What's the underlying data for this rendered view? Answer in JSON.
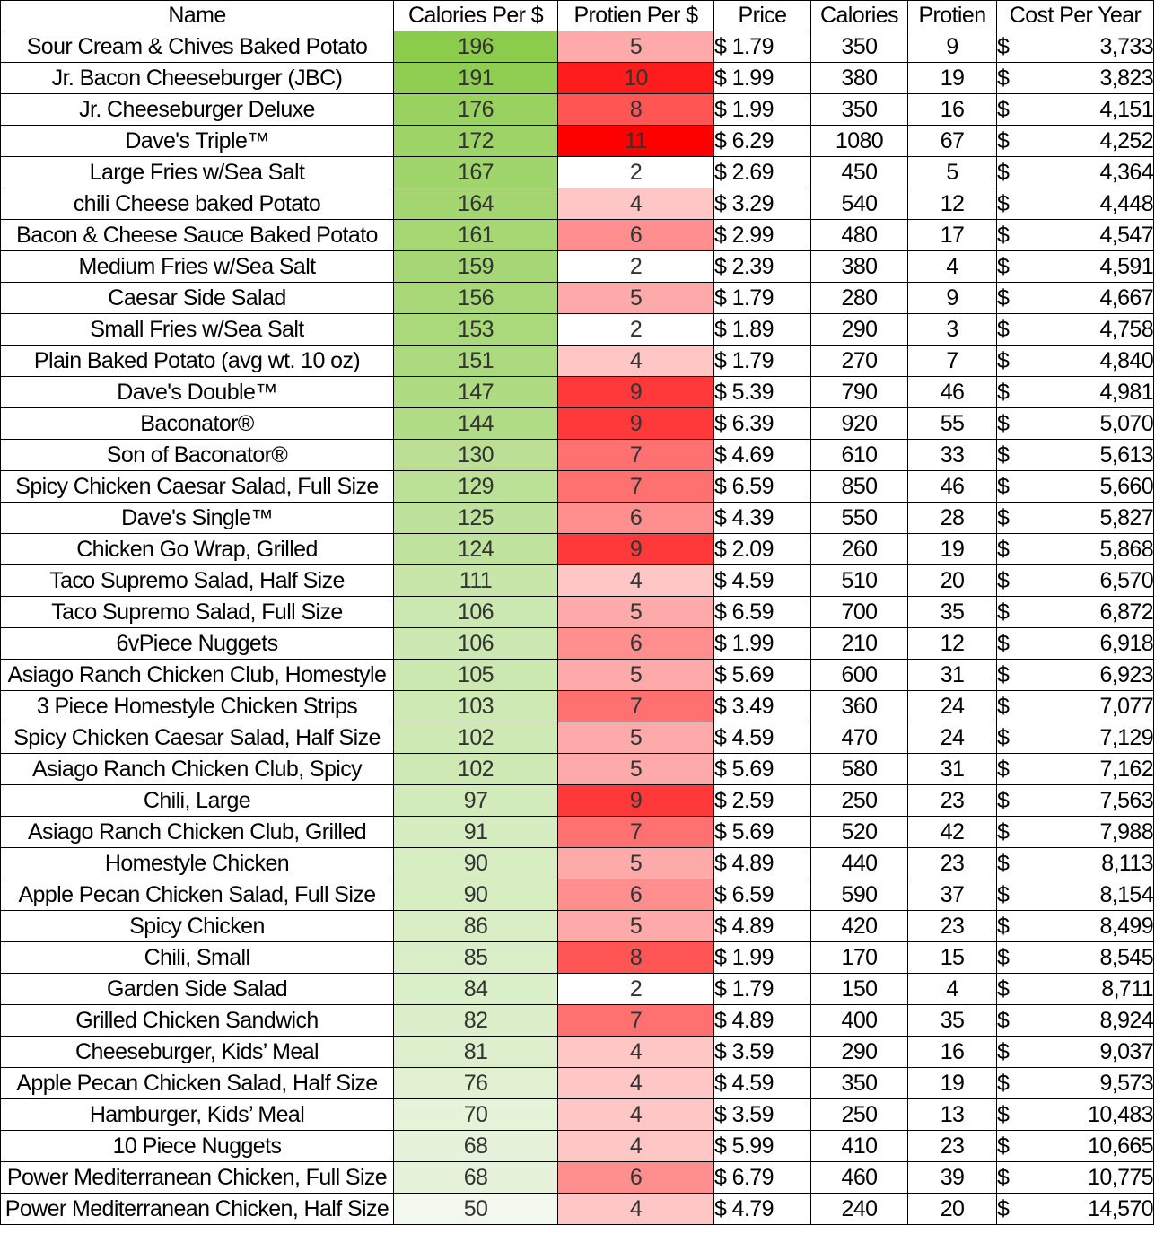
{
  "headers": {
    "name": "Name",
    "calories_per_dollar": "Calories Per $",
    "protein_per_dollar": "Protien Per $",
    "price": "Price",
    "calories": "Calories",
    "protein": "Protien",
    "cost_per_year": "Cost Per Year"
  },
  "currency_symbol": "$",
  "colors": {
    "green_scale_max": "#8ccc4c",
    "green_scale_min": "#f3f9ee",
    "red_scale_max": "#ff0000",
    "red_scale_min": "#ffffff"
  },
  "rows": [
    {
      "name": "Sour Cream & Chives Baked Potato",
      "cpd": "196",
      "ppd": "5",
      "price": "$ 1.79",
      "cal": "350",
      "pro": "9",
      "cost": "3,733"
    },
    {
      "name": "Jr. Bacon Cheeseburger (JBC)",
      "cpd": "191",
      "ppd": "10",
      "price": "$ 1.99",
      "cal": "380",
      "pro": "19",
      "cost": "3,823"
    },
    {
      "name": "Jr. Cheeseburger Deluxe",
      "cpd": "176",
      "ppd": "8",
      "price": "$ 1.99",
      "cal": "350",
      "pro": "16",
      "cost": "4,151"
    },
    {
      "name": "Dave's Triple™",
      "cpd": "172",
      "ppd": "11",
      "price": "$ 6.29",
      "cal": "1080",
      "pro": "67",
      "cost": "4,252"
    },
    {
      "name": "Large Fries w/Sea Salt",
      "cpd": "167",
      "ppd": "2",
      "price": "$ 2.69",
      "cal": "450",
      "pro": "5",
      "cost": "4,364"
    },
    {
      "name": "chili Cheese baked Potato",
      "cpd": "164",
      "ppd": "4",
      "price": "$ 3.29",
      "cal": "540",
      "pro": "12",
      "cost": "4,448"
    },
    {
      "name": "Bacon & Cheese Sauce Baked Potato",
      "cpd": "161",
      "ppd": "6",
      "price": "$ 2.99",
      "cal": "480",
      "pro": "17",
      "cost": "4,547"
    },
    {
      "name": "Medium Fries w/Sea Salt",
      "cpd": "159",
      "ppd": "2",
      "price": "$ 2.39",
      "cal": "380",
      "pro": "4",
      "cost": "4,591"
    },
    {
      "name": "Caesar Side Salad",
      "cpd": "156",
      "ppd": "5",
      "price": "$ 1.79",
      "cal": "280",
      "pro": "9",
      "cost": "4,667"
    },
    {
      "name": "Small Fries w/Sea Salt",
      "cpd": "153",
      "ppd": "2",
      "price": "$ 1.89",
      "cal": "290",
      "pro": "3",
      "cost": "4,758"
    },
    {
      "name": "Plain Baked Potato (avg wt. 10 oz)",
      "cpd": "151",
      "ppd": "4",
      "price": "$ 1.79",
      "cal": "270",
      "pro": "7",
      "cost": "4,840"
    },
    {
      "name": "Dave's Double™",
      "cpd": "147",
      "ppd": "9",
      "price": "$ 5.39",
      "cal": "790",
      "pro": "46",
      "cost": "4,981"
    },
    {
      "name": "Baconator®",
      "cpd": "144",
      "ppd": "9",
      "price": "$ 6.39",
      "cal": "920",
      "pro": "55",
      "cost": "5,070"
    },
    {
      "name": "Son of Baconator®",
      "cpd": "130",
      "ppd": "7",
      "price": "$ 4.69",
      "cal": "610",
      "pro": "33",
      "cost": "5,613"
    },
    {
      "name": "Spicy Chicken Caesar Salad, Full Size",
      "cpd": "129",
      "ppd": "7",
      "price": "$ 6.59",
      "cal": "850",
      "pro": "46",
      "cost": "5,660"
    },
    {
      "name": "Dave's Single™",
      "cpd": "125",
      "ppd": "6",
      "price": "$ 4.39",
      "cal": "550",
      "pro": "28",
      "cost": "5,827"
    },
    {
      "name": "Chicken Go Wrap, Grilled",
      "cpd": "124",
      "ppd": "9",
      "price": "$ 2.09",
      "cal": "260",
      "pro": "19",
      "cost": "5,868"
    },
    {
      "name": "Taco Supremo Salad, Half Size",
      "cpd": "111",
      "ppd": "4",
      "price": "$ 4.59",
      "cal": "510",
      "pro": "20",
      "cost": "6,570"
    },
    {
      "name": "Taco Supremo Salad, Full Size",
      "cpd": "106",
      "ppd": "5",
      "price": "$ 6.59",
      "cal": "700",
      "pro": "35",
      "cost": "6,872"
    },
    {
      "name": "6vPiece Nuggets",
      "cpd": "106",
      "ppd": "6",
      "price": "$ 1.99",
      "cal": "210",
      "pro": "12",
      "cost": "6,918"
    },
    {
      "name": "Asiago Ranch Chicken Club, Homestyle",
      "cpd": "105",
      "ppd": "5",
      "price": "$ 5.69",
      "cal": "600",
      "pro": "31",
      "cost": "6,923"
    },
    {
      "name": "3 Piece Homestyle Chicken Strips",
      "cpd": "103",
      "ppd": "7",
      "price": "$ 3.49",
      "cal": "360",
      "pro": "24",
      "cost": "7,077"
    },
    {
      "name": "Spicy Chicken Caesar Salad, Half Size",
      "cpd": "102",
      "ppd": "5",
      "price": "$ 4.59",
      "cal": "470",
      "pro": "24",
      "cost": "7,129"
    },
    {
      "name": "Asiago Ranch Chicken Club, Spicy",
      "cpd": "102",
      "ppd": "5",
      "price": "$ 5.69",
      "cal": "580",
      "pro": "31",
      "cost": "7,162"
    },
    {
      "name": "Chili, Large",
      "cpd": "97",
      "ppd": "9",
      "price": "$ 2.59",
      "cal": "250",
      "pro": "23",
      "cost": "7,563"
    },
    {
      "name": "Asiago Ranch Chicken Club, Grilled",
      "cpd": "91",
      "ppd": "7",
      "price": "$ 5.69",
      "cal": "520",
      "pro": "42",
      "cost": "7,988"
    },
    {
      "name": "Homestyle Chicken",
      "cpd": "90",
      "ppd": "5",
      "price": "$ 4.89",
      "cal": "440",
      "pro": "23",
      "cost": "8,113"
    },
    {
      "name": "Apple Pecan Chicken Salad, Full Size",
      "cpd": "90",
      "ppd": "6",
      "price": "$ 6.59",
      "cal": "590",
      "pro": "37",
      "cost": "8,154"
    },
    {
      "name": "Spicy Chicken",
      "cpd": "86",
      "ppd": "5",
      "price": "$ 4.89",
      "cal": "420",
      "pro": "23",
      "cost": "8,499"
    },
    {
      "name": "Chili, Small",
      "cpd": "85",
      "ppd": "8",
      "price": "$ 1.99",
      "cal": "170",
      "pro": "15",
      "cost": "8,545"
    },
    {
      "name": "Garden Side Salad",
      "cpd": "84",
      "ppd": "2",
      "price": "$ 1.79",
      "cal": "150",
      "pro": "4",
      "cost": "8,711"
    },
    {
      "name": "Grilled Chicken Sandwich",
      "cpd": "82",
      "ppd": "7",
      "price": "$ 4.89",
      "cal": "400",
      "pro": "35",
      "cost": "8,924"
    },
    {
      "name": "Cheeseburger, Kids’ Meal",
      "cpd": "81",
      "ppd": "4",
      "price": "$ 3.59",
      "cal": "290",
      "pro": "16",
      "cost": "9,037"
    },
    {
      "name": "Apple Pecan Chicken Salad, Half Size",
      "cpd": "76",
      "ppd": "4",
      "price": "$ 4.59",
      "cal": "350",
      "pro": "19",
      "cost": "9,573"
    },
    {
      "name": "Hamburger, Kids’ Meal",
      "cpd": "70",
      "ppd": "4",
      "price": "$ 3.59",
      "cal": "250",
      "pro": "13",
      "cost": "10,483"
    },
    {
      "name": "10 Piece Nuggets",
      "cpd": "68",
      "ppd": "4",
      "price": "$ 5.99",
      "cal": "410",
      "pro": "23",
      "cost": "10,665"
    },
    {
      "name": "Power Mediterranean Chicken, Full Size",
      "cpd": "68",
      "ppd": "6",
      "price": "$ 6.79",
      "cal": "460",
      "pro": "39",
      "cost": "10,775"
    },
    {
      "name": "Power Mediterranean Chicken, Half Size",
      "cpd": "50",
      "ppd": "4",
      "price": "$ 4.79",
      "cal": "240",
      "pro": "20",
      "cost": "14,570"
    }
  ]
}
